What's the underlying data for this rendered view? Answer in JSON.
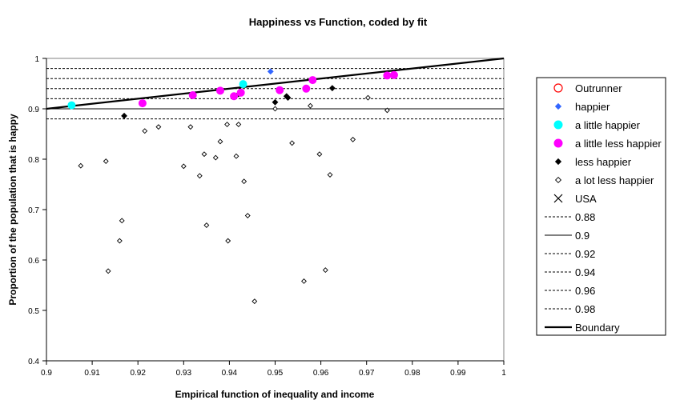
{
  "chart_data": {
    "type": "scatter",
    "title": "Happiness vs Function, coded by fit",
    "xlabel": "Empirical function of inequality and income",
    "ylabel": "Proportion of the population that is happy",
    "xlim": [
      0.9,
      1.0
    ],
    "ylim": [
      0.4,
      1.0
    ],
    "x_ticks": [
      "0.9",
      "0.91",
      "0.92",
      "0.93",
      "0.94",
      "0.95",
      "0.96",
      "0.97",
      "0.98",
      "0.99",
      "1"
    ],
    "y_ticks": [
      "0.4",
      "0.5",
      "0.6",
      "0.7",
      "0.8",
      "0.9",
      "1"
    ],
    "grid": false,
    "legend_position": "right",
    "series": [
      {
        "name": "Outrunner",
        "marker": "open-circle",
        "color": "#ff0000",
        "points": []
      },
      {
        "name": "happier",
        "marker": "diamond",
        "color": "#3366ff",
        "points": [
          [
            0.949,
            0.974
          ]
        ]
      },
      {
        "name": "a little happier",
        "marker": "circle",
        "color": "#00ffff",
        "points": [
          [
            0.9055,
            0.907
          ],
          [
            0.943,
            0.949
          ]
        ]
      },
      {
        "name": "a little less happier",
        "marker": "circle",
        "color": "#ff00ff",
        "points": [
          [
            0.921,
            0.911
          ],
          [
            0.932,
            0.927
          ],
          [
            0.938,
            0.936
          ],
          [
            0.941,
            0.925
          ],
          [
            0.9425,
            0.932
          ],
          [
            0.951,
            0.937
          ],
          [
            0.9568,
            0.94
          ],
          [
            0.9582,
            0.957
          ],
          [
            0.9745,
            0.966
          ],
          [
            0.976,
            0.967
          ]
        ]
      },
      {
        "name": "less happier",
        "marker": "diamond",
        "color": "#000000",
        "points": [
          [
            0.917,
            0.886
          ],
          [
            0.95,
            0.913
          ],
          [
            0.9528,
            0.922
          ],
          [
            0.9525,
            0.925
          ],
          [
            0.9625,
            0.941
          ],
          [
            0.942,
            0.929
          ]
        ]
      },
      {
        "name": "a lot less happier",
        "marker": "open-diamond",
        "color": "#000000",
        "points": [
          [
            0.9075,
            0.787
          ],
          [
            0.913,
            0.796
          ],
          [
            0.9135,
            0.578
          ],
          [
            0.916,
            0.638
          ],
          [
            0.9165,
            0.678
          ],
          [
            0.9215,
            0.856
          ],
          [
            0.9245,
            0.864
          ],
          [
            0.93,
            0.786
          ],
          [
            0.9315,
            0.864
          ],
          [
            0.9335,
            0.767
          ],
          [
            0.9345,
            0.81
          ],
          [
            0.935,
            0.669
          ],
          [
            0.937,
            0.803
          ],
          [
            0.938,
            0.835
          ],
          [
            0.9395,
            0.869
          ],
          [
            0.9397,
            0.638
          ],
          [
            0.9415,
            0.806
          ],
          [
            0.942,
            0.869
          ],
          [
            0.9432,
            0.756
          ],
          [
            0.944,
            0.688
          ],
          [
            0.9455,
            0.518
          ],
          [
            0.95,
            0.9
          ],
          [
            0.9537,
            0.832
          ],
          [
            0.9563,
            0.558
          ],
          [
            0.9577,
            0.906
          ],
          [
            0.9597,
            0.81
          ],
          [
            0.961,
            0.58
          ],
          [
            0.962,
            0.769
          ],
          [
            0.967,
            0.839
          ],
          [
            0.9703,
            0.922
          ],
          [
            0.9745,
            0.897
          ]
        ]
      },
      {
        "name": "USA",
        "marker": "x",
        "color": "#000000",
        "points": []
      },
      {
        "name": "0.88",
        "type": "hline",
        "style": "dashed",
        "y": 0.88
      },
      {
        "name": "0.9",
        "type": "hline",
        "style": "solid",
        "y": 0.9
      },
      {
        "name": "0.92",
        "type": "hline",
        "style": "dashed",
        "y": 0.92
      },
      {
        "name": "0.94",
        "type": "hline",
        "style": "dashed",
        "y": 0.94
      },
      {
        "name": "0.96",
        "type": "hline",
        "style": "dashed",
        "y": 0.96
      },
      {
        "name": "0.98",
        "type": "hline",
        "style": "dashed",
        "y": 0.98
      },
      {
        "name": "Boundary",
        "type": "line",
        "style": "thick",
        "points": [
          [
            0.9,
            0.9
          ],
          [
            1.0,
            1.0
          ]
        ]
      }
    ]
  }
}
